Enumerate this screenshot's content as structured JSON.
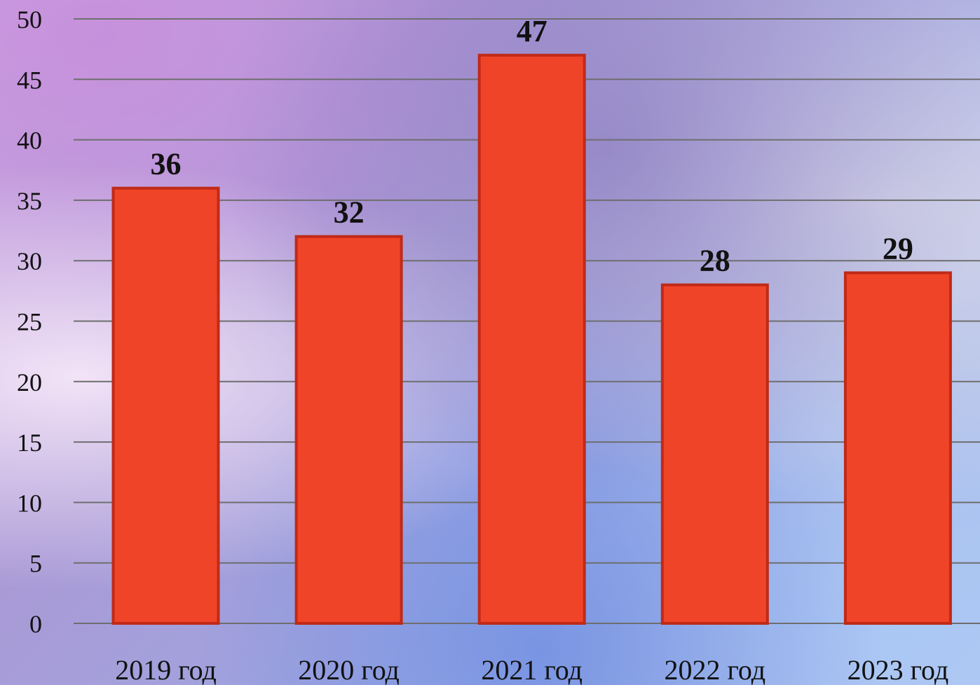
{
  "chart_data": {
    "type": "bar",
    "categories": [
      "2019 год",
      "2020 год",
      "2021 год",
      "2022 год",
      "2023 год"
    ],
    "values": [
      36,
      32,
      47,
      28,
      29
    ],
    "data_labels": [
      "36",
      "32",
      "47",
      "28",
      "29"
    ],
    "yticks": [
      "0",
      "5",
      "10",
      "15",
      "20",
      "25",
      "30",
      "35",
      "40",
      "45",
      "50"
    ],
    "ylim": [
      0,
      50
    ],
    "title": "",
    "xlabel": "",
    "ylabel": "",
    "grid": true,
    "legend": "none",
    "colors": {
      "bar_fill": "#f04428",
      "bar_stroke": "#c02a18",
      "grid": "#6e6e6e"
    }
  }
}
